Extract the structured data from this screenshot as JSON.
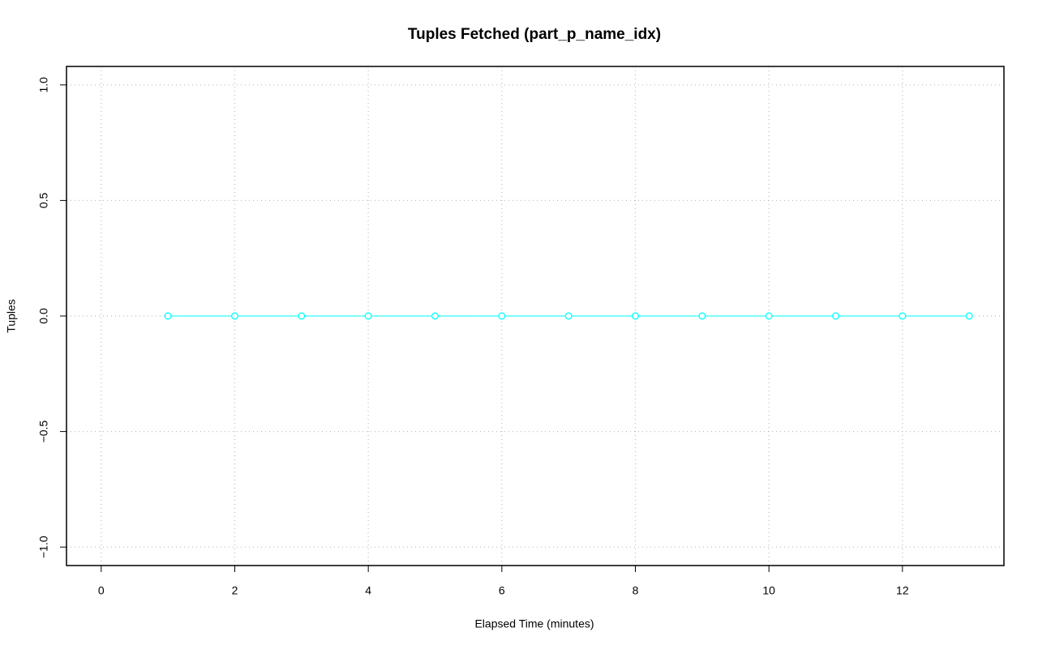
{
  "chart_data": {
    "type": "line",
    "title": "Tuples Fetched (part_p_name_idx)",
    "x_label": "Elapsed Time (minutes)",
    "y_label": "Tuples",
    "x": [
      1,
      2,
      3,
      4,
      5,
      6,
      7,
      8,
      9,
      10,
      11,
      12,
      13
    ],
    "series": [
      {
        "color": "#00ffff",
        "values": [
          0,
          0,
          0,
          0,
          0,
          0,
          0,
          0,
          0,
          0,
          0,
          0,
          0
        ]
      }
    ],
    "xlim": [
      -0.52,
      13.52
    ],
    "xticks": [
      0,
      2,
      4,
      6,
      8,
      10,
      12
    ],
    "ylim": [
      -1.08,
      1.08
    ],
    "yticks": [
      {
        "value": -1,
        "label": "−1.0"
      },
      {
        "value": -0.5,
        "label": "−0.5"
      },
      {
        "value": 0,
        "label": "0.0"
      },
      {
        "value": 0.5,
        "label": "0.5"
      },
      {
        "value": 1,
        "label": "1.0"
      }
    ],
    "grid": true
  }
}
